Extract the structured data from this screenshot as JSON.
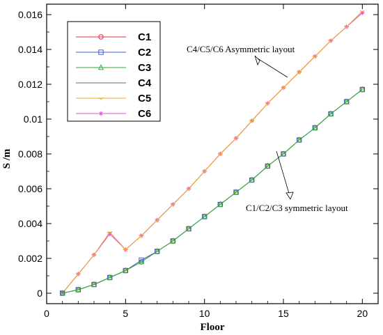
{
  "chart_data": {
    "type": "line",
    "title": "",
    "xlabel": "Floor",
    "ylabel": "S /m",
    "xlim": [
      0,
      21
    ],
    "ylim": [
      -0.0006,
      0.0166
    ],
    "xticks": [
      0,
      5,
      10,
      15,
      20
    ],
    "xtick_labels": [
      "0",
      "5",
      "10",
      "15",
      "20"
    ],
    "yticks": [
      0,
      0.002,
      0.004,
      0.006,
      0.008,
      0.01,
      0.012,
      0.014,
      0.016
    ],
    "ytick_labels": [
      "0",
      "0.002",
      "0.004",
      "0.006",
      "0.008",
      "0.01",
      "0.012",
      "0.014",
      "0.016"
    ],
    "grid": false,
    "legend_position": "top-left",
    "x": [
      1,
      2,
      3,
      4,
      5,
      6,
      7,
      8,
      9,
      10,
      11,
      12,
      13,
      14,
      15,
      16,
      17,
      18,
      19,
      20
    ],
    "series": [
      {
        "name": "C1",
        "color": "#e8293a",
        "marker": "circle",
        "values": [
          0,
          0.0002,
          0.0005,
          0.0009,
          0.0013,
          0.0018,
          0.0024,
          0.003,
          0.0037,
          0.0044,
          0.0051,
          0.0058,
          0.0065,
          0.0073,
          0.008,
          0.0088,
          0.0095,
          0.0103,
          0.011,
          0.0117
        ]
      },
      {
        "name": "C2",
        "color": "#3d5ccf",
        "marker": "square",
        "values": [
          0,
          0.0002,
          0.0005,
          0.0009,
          0.0013,
          0.0019,
          0.0024,
          0.003,
          0.0037,
          0.0044,
          0.0051,
          0.0058,
          0.0065,
          0.0073,
          0.008,
          0.0088,
          0.0095,
          0.0103,
          0.011,
          0.0117
        ]
      },
      {
        "name": "C3",
        "color": "#2fae2f",
        "marker": "triangle",
        "values": [
          0,
          0.0002,
          0.0005,
          0.0009,
          0.0013,
          0.0018,
          0.0024,
          0.003,
          0.0037,
          0.0044,
          0.0051,
          0.0058,
          0.0065,
          0.0073,
          0.008,
          0.0088,
          0.0095,
          0.0103,
          0.011,
          0.0117
        ]
      },
      {
        "name": "C4",
        "color": "#666666",
        "marker": "dash",
        "values": [
          0,
          0.0011,
          0.0022,
          0.0035,
          0.0025,
          0.0033,
          0.0042,
          0.0051,
          0.006,
          0.007,
          0.008,
          0.0089,
          0.0099,
          0.0109,
          0.0118,
          0.0127,
          0.0136,
          0.0145,
          0.0153,
          0.0161
        ]
      },
      {
        "name": "C5",
        "color": "#f5a623",
        "marker": "tick",
        "values": [
          0,
          0.0011,
          0.0022,
          0.0035,
          0.0025,
          0.0033,
          0.0042,
          0.0051,
          0.006,
          0.007,
          0.008,
          0.0089,
          0.0099,
          0.0109,
          0.0118,
          0.0127,
          0.0136,
          0.0145,
          0.0153,
          0.0162
        ]
      },
      {
        "name": "C6",
        "color": "#e04fe0",
        "marker": "star",
        "values": [
          0,
          0.0011,
          0.0022,
          0.0034,
          0.0025,
          0.0033,
          0.0042,
          0.0051,
          0.006,
          0.007,
          0.008,
          0.0089,
          0.0099,
          0.0109,
          0.0118,
          0.0127,
          0.0136,
          0.0145,
          0.0153,
          0.0161
        ]
      }
    ],
    "annotations": [
      {
        "text": "C4/C5/C6  Asymmetric layout",
        "points_to": {
          "x": 15,
          "y": 0.0118
        }
      },
      {
        "text": "C1/C2/C3 symmetric layout",
        "points_to": {
          "x": 14,
          "y": 0.0073
        }
      }
    ]
  }
}
